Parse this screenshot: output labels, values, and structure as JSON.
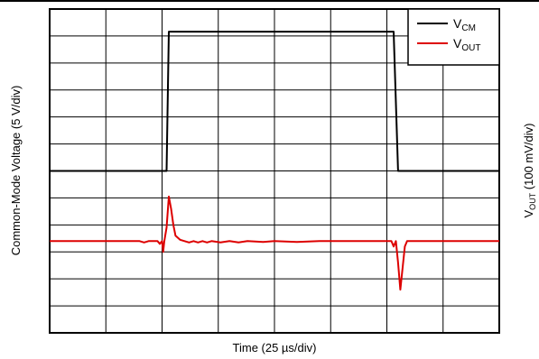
{
  "chart_data": {
    "type": "line",
    "xlabel": "Time (25 µs/div)",
    "ylabel_left": "Common-Mode Voltage (5 V/div)",
    "ylabel_right": "V_OUT (100 mV/div)",
    "x_divisions": 8,
    "y_divisions": 12,
    "xlim": [
      0,
      200
    ],
    "x_unit": "µs",
    "grid": true,
    "legend_position": "top-right",
    "legend": [
      {
        "main": "V",
        "sub": "CM",
        "color": "#000000"
      },
      {
        "main": "V",
        "sub": "OUT",
        "color": "#dd0000"
      }
    ],
    "series": [
      {
        "name": "VCM",
        "color": "#000000",
        "unit": "V",
        "scale_per_div": 5,
        "baseline_div": 6,
        "points": [
          [
            0,
            0
          ],
          [
            52,
            0
          ],
          [
            53,
            25.8
          ],
          [
            153,
            25.8
          ],
          [
            155,
            0
          ],
          [
            200,
            0
          ]
        ]
      },
      {
        "name": "VOUT",
        "color": "#dd0000",
        "unit": "mV",
        "scale_per_div": 100,
        "baseline_div": 3.4,
        "points": [
          [
            0,
            0
          ],
          [
            40,
            0
          ],
          [
            42,
            -5
          ],
          [
            44,
            0
          ],
          [
            48,
            0
          ],
          [
            49,
            -10
          ],
          [
            50,
            0
          ],
          [
            50.5,
            -40
          ],
          [
            51,
            0
          ],
          [
            52,
            50
          ],
          [
            53,
            165
          ],
          [
            54,
            120
          ],
          [
            55,
            60
          ],
          [
            56,
            20
          ],
          [
            58,
            5
          ],
          [
            60,
            0
          ],
          [
            62,
            -5
          ],
          [
            64,
            0
          ],
          [
            66,
            -5
          ],
          [
            68,
            0
          ],
          [
            70,
            -5
          ],
          [
            72,
            0
          ],
          [
            76,
            -5
          ],
          [
            80,
            0
          ],
          [
            84,
            -5
          ],
          [
            88,
            0
          ],
          [
            95,
            -3
          ],
          [
            100,
            0
          ],
          [
            110,
            -3
          ],
          [
            120,
            0
          ],
          [
            152,
            0
          ],
          [
            153,
            -20
          ],
          [
            154,
            0
          ],
          [
            155,
            -80
          ],
          [
            156,
            -180
          ],
          [
            157,
            -100
          ],
          [
            158,
            -20
          ],
          [
            159,
            0
          ],
          [
            200,
            0
          ]
        ]
      }
    ]
  }
}
